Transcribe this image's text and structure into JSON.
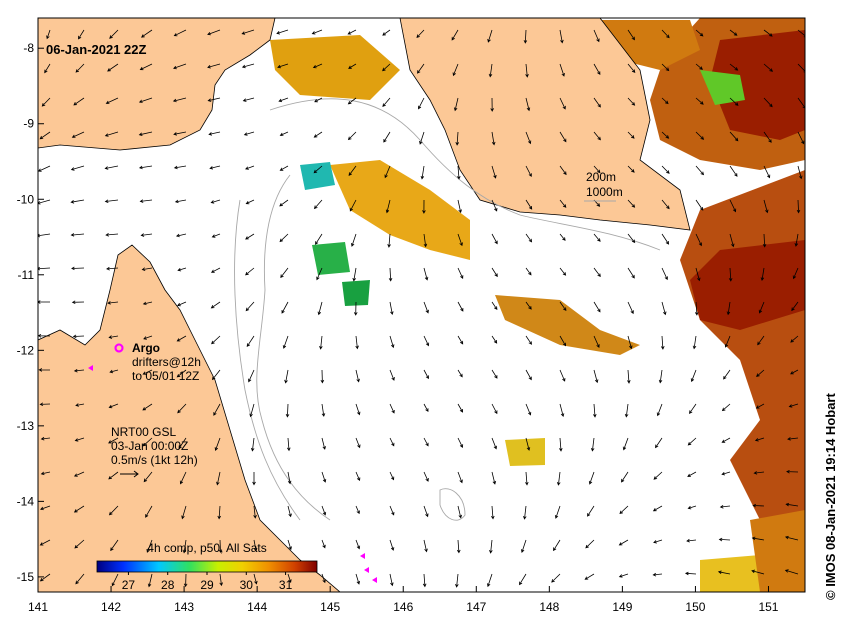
{
  "map": {
    "title": "06-Jan-2021 22Z",
    "credit": "© IMOS 08-Jan-2021 19:14 Hobart",
    "x_ticks": [
      "141",
      "142",
      "143",
      "144",
      "145",
      "146",
      "147",
      "148",
      "149",
      "150",
      "151"
    ],
    "y_ticks": [
      "-8",
      "-9",
      "-10",
      "-11",
      "-12",
      "-13",
      "-14",
      "-15"
    ],
    "lon_range": [
      141,
      151.5
    ],
    "lat_range": [
      -15.2,
      -7.6
    ],
    "contours": [
      "200m",
      "1000m"
    ],
    "argo": {
      "title": "Argo",
      "line1": "drifters@12h",
      "line2": "to 05/01 12Z"
    },
    "currents": {
      "line1": "NRT00 GSL",
      "line2": "03-Jan 00:00Z",
      "line3": "0.5m/s (1kt 12h)"
    },
    "colorbar": {
      "title": "4h comp, p50, All Sats",
      "ticks": [
        "27",
        "28",
        "29",
        "30",
        "31"
      ],
      "range": [
        26.2,
        31.8
      ]
    },
    "colors": {
      "land": "#fcc896",
      "ocean": "#ffffff",
      "argo_marker": "#ff00ff"
    }
  }
}
